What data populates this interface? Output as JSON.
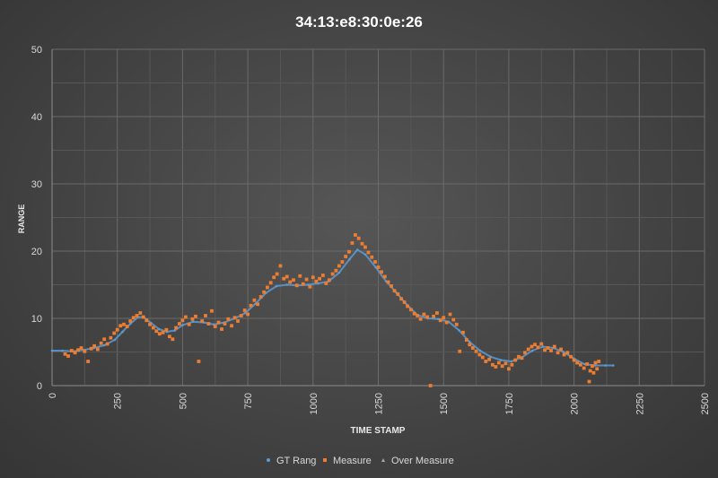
{
  "chart_data": {
    "type": "scatter",
    "title": "34:13:e8:30:0e:26",
    "xlabel": "TIME STAMP",
    "ylabel": "RANGE",
    "xlim": [
      0,
      2500
    ],
    "ylim": [
      0,
      50
    ],
    "x_ticks": [
      "0",
      "250",
      "500",
      "750",
      "1000",
      "1250",
      "1500",
      "1750",
      "2000",
      "2250",
      "2500"
    ],
    "y_ticks": [
      "0",
      "10",
      "20",
      "30",
      "40",
      "50"
    ],
    "grid": true,
    "legend_position": "bottom",
    "series": [
      {
        "name": "GT Rang",
        "marker": "dot",
        "color": "#5B9BD5",
        "points": [
          [
            0,
            5.2
          ],
          [
            40,
            5.2
          ],
          [
            80,
            5.1
          ],
          [
            120,
            5.3
          ],
          [
            160,
            5.6
          ],
          [
            200,
            6.0
          ],
          [
            240,
            6.8
          ],
          [
            270,
            8.0
          ],
          [
            300,
            9.2
          ],
          [
            330,
            10.2
          ],
          [
            350,
            10.2
          ],
          [
            380,
            9.3
          ],
          [
            410,
            8.4
          ],
          [
            440,
            8.0
          ],
          [
            470,
            8.2
          ],
          [
            500,
            9.0
          ],
          [
            540,
            9.5
          ],
          [
            580,
            9.4
          ],
          [
            620,
            9.1
          ],
          [
            660,
            9.4
          ],
          [
            700,
            10.0
          ],
          [
            740,
            10.8
          ],
          [
            780,
            12.2
          ],
          [
            820,
            13.8
          ],
          [
            860,
            14.8
          ],
          [
            900,
            15.0
          ],
          [
            940,
            14.9
          ],
          [
            980,
            15.0
          ],
          [
            1020,
            15.2
          ],
          [
            1060,
            15.5
          ],
          [
            1100,
            16.8
          ],
          [
            1140,
            18.8
          ],
          [
            1170,
            20.2
          ],
          [
            1200,
            19.5
          ],
          [
            1240,
            17.6
          ],
          [
            1280,
            15.5
          ],
          [
            1320,
            13.8
          ],
          [
            1360,
            12.0
          ],
          [
            1400,
            10.5
          ],
          [
            1440,
            10.0
          ],
          [
            1480,
            9.9
          ],
          [
            1520,
            9.5
          ],
          [
            1560,
            8.2
          ],
          [
            1600,
            6.5
          ],
          [
            1640,
            5.2
          ],
          [
            1680,
            4.3
          ],
          [
            1720,
            3.8
          ],
          [
            1760,
            3.6
          ],
          [
            1800,
            4.2
          ],
          [
            1840,
            5.2
          ],
          [
            1880,
            5.8
          ],
          [
            1920,
            5.6
          ],
          [
            1960,
            5.0
          ],
          [
            2000,
            4.0
          ],
          [
            2040,
            3.2
          ],
          [
            2080,
            3.0
          ],
          [
            2120,
            3.0
          ],
          [
            2150,
            3.0
          ]
        ]
      },
      {
        "name": "Measure",
        "marker": "square",
        "color": "#ED7D31",
        "points": [
          [
            50,
            4.7
          ],
          [
            62,
            4.4
          ],
          [
            75,
            5.2
          ],
          [
            88,
            4.9
          ],
          [
            100,
            5.3
          ],
          [
            112,
            5.6
          ],
          [
            125,
            5.1
          ],
          [
            138,
            3.6
          ],
          [
            150,
            5.5
          ],
          [
            162,
            5.9
          ],
          [
            175,
            5.4
          ],
          [
            188,
            6.3
          ],
          [
            200,
            6.9
          ],
          [
            212,
            6.2
          ],
          [
            225,
            7.1
          ],
          [
            238,
            7.8
          ],
          [
            250,
            8.3
          ],
          [
            262,
            8.9
          ],
          [
            275,
            9.1
          ],
          [
            288,
            8.8
          ],
          [
            300,
            9.6
          ],
          [
            312,
            10.1
          ],
          [
            325,
            10.4
          ],
          [
            338,
            10.8
          ],
          [
            350,
            10.2
          ],
          [
            362,
            9.7
          ],
          [
            375,
            9.1
          ],
          [
            388,
            8.6
          ],
          [
            400,
            8.1
          ],
          [
            412,
            7.7
          ],
          [
            425,
            7.9
          ],
          [
            438,
            8.3
          ],
          [
            450,
            7.3
          ],
          [
            462,
            6.9
          ],
          [
            475,
            8.6
          ],
          [
            488,
            9.2
          ],
          [
            500,
            9.7
          ],
          [
            512,
            10.2
          ],
          [
            525,
            9.1
          ],
          [
            538,
            9.9
          ],
          [
            550,
            10.3
          ],
          [
            562,
            3.6
          ],
          [
            575,
            9.6
          ],
          [
            588,
            10.4
          ],
          [
            600,
            9.2
          ],
          [
            612,
            11.1
          ],
          [
            625,
            8.8
          ],
          [
            638,
            9.4
          ],
          [
            650,
            8.4
          ],
          [
            662,
            9.2
          ],
          [
            675,
            9.9
          ],
          [
            688,
            8.9
          ],
          [
            700,
            10.1
          ],
          [
            712,
            9.6
          ],
          [
            725,
            10.4
          ],
          [
            738,
            11.2
          ],
          [
            750,
            10.6
          ],
          [
            762,
            11.9
          ],
          [
            775,
            12.7
          ],
          [
            788,
            12.1
          ],
          [
            800,
            13.2
          ],
          [
            812,
            13.9
          ],
          [
            825,
            14.6
          ],
          [
            838,
            15.3
          ],
          [
            850,
            16.1
          ],
          [
            862,
            16.6
          ],
          [
            875,
            17.8
          ],
          [
            888,
            15.9
          ],
          [
            900,
            16.2
          ],
          [
            912,
            15.4
          ],
          [
            925,
            15.7
          ],
          [
            938,
            14.9
          ],
          [
            950,
            16.3
          ],
          [
            962,
            15.1
          ],
          [
            975,
            15.8
          ],
          [
            988,
            14.7
          ],
          [
            1000,
            16.1
          ],
          [
            1012,
            15.5
          ],
          [
            1025,
            15.9
          ],
          [
            1038,
            16.4
          ],
          [
            1050,
            15.2
          ],
          [
            1062,
            15.7
          ],
          [
            1075,
            16.6
          ],
          [
            1088,
            17.1
          ],
          [
            1100,
            17.8
          ],
          [
            1112,
            18.4
          ],
          [
            1125,
            19.2
          ],
          [
            1138,
            19.9
          ],
          [
            1150,
            21.2
          ],
          [
            1162,
            22.4
          ],
          [
            1175,
            21.9
          ],
          [
            1188,
            21.1
          ],
          [
            1200,
            20.6
          ],
          [
            1212,
            19.8
          ],
          [
            1225,
            19.1
          ],
          [
            1238,
            18.4
          ],
          [
            1250,
            17.6
          ],
          [
            1262,
            16.9
          ],
          [
            1275,
            16.2
          ],
          [
            1288,
            15.4
          ],
          [
            1300,
            14.8
          ],
          [
            1312,
            14.1
          ],
          [
            1325,
            13.6
          ],
          [
            1338,
            12.9
          ],
          [
            1350,
            12.4
          ],
          [
            1362,
            11.8
          ],
          [
            1375,
            11.3
          ],
          [
            1388,
            10.7
          ],
          [
            1400,
            10.4
          ],
          [
            1412,
            9.9
          ],
          [
            1425,
            10.6
          ],
          [
            1438,
            10.2
          ],
          [
            1450,
            0.0
          ],
          [
            1462,
            10.3
          ],
          [
            1475,
            10.8
          ],
          [
            1488,
            9.7
          ],
          [
            1500,
            10.1
          ],
          [
            1512,
            9.4
          ],
          [
            1525,
            10.6
          ],
          [
            1538,
            9.8
          ],
          [
            1550,
            9.1
          ],
          [
            1562,
            5.1
          ],
          [
            1575,
            7.9
          ],
          [
            1588,
            6.8
          ],
          [
            1600,
            6.1
          ],
          [
            1612,
            5.6
          ],
          [
            1625,
            5.1
          ],
          [
            1638,
            4.6
          ],
          [
            1650,
            4.2
          ],
          [
            1662,
            3.6
          ],
          [
            1675,
            3.9
          ],
          [
            1688,
            3.1
          ],
          [
            1700,
            2.8
          ],
          [
            1712,
            3.4
          ],
          [
            1725,
            2.9
          ],
          [
            1738,
            3.3
          ],
          [
            1750,
            2.5
          ],
          [
            1762,
            3.1
          ],
          [
            1775,
            3.8
          ],
          [
            1788,
            4.3
          ],
          [
            1800,
            4.1
          ],
          [
            1812,
            4.9
          ],
          [
            1825,
            5.4
          ],
          [
            1838,
            5.8
          ],
          [
            1850,
            6.1
          ],
          [
            1862,
            5.7
          ],
          [
            1875,
            6.2
          ],
          [
            1888,
            5.3
          ],
          [
            1900,
            5.6
          ],
          [
            1912,
            5.2
          ],
          [
            1925,
            5.8
          ],
          [
            1938,
            4.9
          ],
          [
            1950,
            5.4
          ],
          [
            1962,
            4.6
          ],
          [
            1975,
            4.9
          ],
          [
            1988,
            4.3
          ],
          [
            2000,
            3.8
          ],
          [
            2012,
            3.4
          ],
          [
            2025,
            3.1
          ],
          [
            2038,
            2.6
          ],
          [
            2050,
            3.2
          ],
          [
            2058,
            0.6
          ],
          [
            2062,
            2.2
          ],
          [
            2070,
            2.9
          ],
          [
            2075,
            1.9
          ],
          [
            2082,
            3.4
          ],
          [
            2088,
            2.5
          ],
          [
            2095,
            3.6
          ]
        ]
      },
      {
        "name": "Over Measure",
        "marker": "triangle",
        "color": "#A5A5A5",
        "points": []
      }
    ]
  }
}
